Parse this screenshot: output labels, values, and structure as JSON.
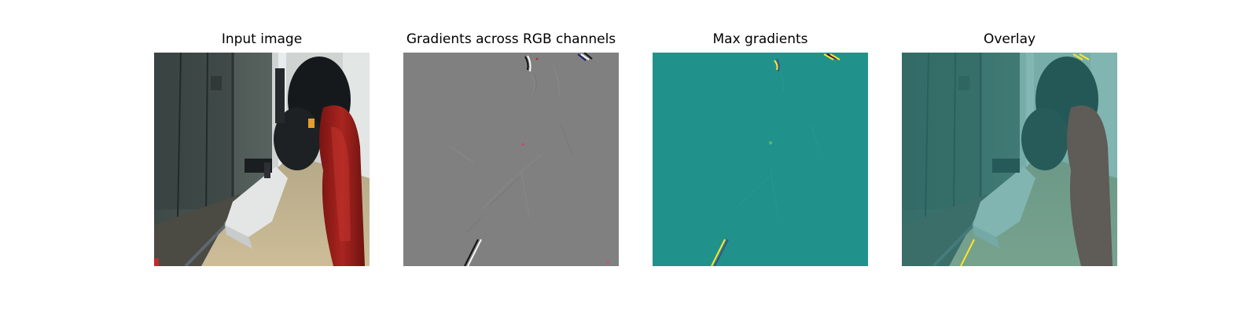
{
  "figure": {
    "panels": [
      {
        "id": "input",
        "title": "Input image",
        "icon": "photo-icon",
        "colors": {
          "floor": "#c0b190",
          "wall": "#4a5552",
          "cloth": "#e4e6e6",
          "chair": "#9a1f1c",
          "black": "#16191c"
        }
      },
      {
        "id": "rgb-gradients",
        "title": "Gradients across RGB channels",
        "icon": "gradient-icon",
        "colors": {
          "background": "#808080",
          "edge_dark": "#1a1a1a",
          "edge_light": "#f4f4f4"
        }
      },
      {
        "id": "max-gradients",
        "title": "Max gradients",
        "icon": "heatmap-icon",
        "colors": {
          "background": "#21918c",
          "hot": "#fde725",
          "cool": "#3b528b",
          "mid": "#5ec962"
        }
      },
      {
        "id": "overlay",
        "title": "Overlay",
        "icon": "overlay-icon",
        "colors": {
          "tint": "#2f8c86"
        }
      }
    ]
  }
}
